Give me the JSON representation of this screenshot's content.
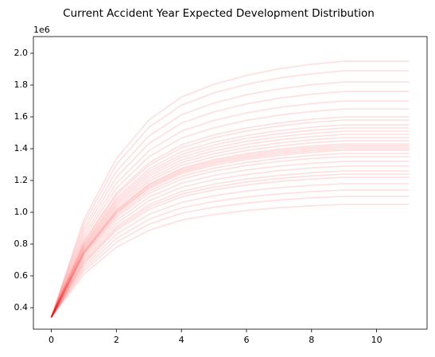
{
  "chart_data": {
    "type": "line",
    "title": "Current Accident Year Expected Development Distribution",
    "y_offset_label": "1e6",
    "color": "#ff0000",
    "line_opacity": 0.13,
    "x": [
      0,
      1,
      2,
      3,
      4,
      5,
      6,
      7,
      8,
      9,
      10,
      11
    ],
    "xlim": [
      -0.55,
      11.55
    ],
    "xticks": [
      0,
      2,
      4,
      6,
      8,
      10
    ],
    "ylim": [
      265000,
      2105000
    ],
    "yticks": [
      {
        "value": 400000,
        "label": "0.4"
      },
      {
        "value": 600000,
        "label": "0.6"
      },
      {
        "value": 800000,
        "label": "0.8"
      },
      {
        "value": 1000000,
        "label": "1.0"
      },
      {
        "value": 1200000,
        "label": "1.2"
      },
      {
        "value": 1400000,
        "label": "1.4"
      },
      {
        "value": 1600000,
        "label": "1.6"
      },
      {
        "value": 1800000,
        "label": "1.8"
      },
      {
        "value": 2000000,
        "label": "2.0"
      }
    ],
    "series": [
      {
        "values": [
          340000,
          610000,
          780000,
          887000,
          951000,
          986000,
          1011000,
          1029000,
          1041000,
          1050000,
          1050000,
          1050000
        ]
      },
      {
        "values": [
          340000,
          629000,
          811000,
          925000,
          994000,
          1032000,
          1058000,
          1077000,
          1091000,
          1100000,
          1100000,
          1100000
        ]
      },
      {
        "values": [
          340000,
          644000,
          836000,
          956000,
          1028000,
          1068000,
          1096000,
          1116000,
          1130000,
          1140000,
          1140000,
          1140000
        ]
      },
      {
        "values": [
          340000,
          659000,
          861000,
          987000,
          1062000,
          1104000,
          1134000,
          1155000,
          1170000,
          1180000,
          1180000,
          1180000
        ]
      },
      {
        "values": [
          340000,
          674000,
          886000,
          1018000,
          1097000,
          1141000,
          1172000,
          1194000,
          1209000,
          1220000,
          1220000,
          1220000
        ]
      },
      {
        "values": [
          340000,
          682000,
          898000,
          1033000,
          1114000,
          1159000,
          1191000,
          1213000,
          1229000,
          1240000,
          1240000,
          1240000
        ]
      },
      {
        "values": [
          340000,
          690000,
          910000,
          1048000,
          1131000,
          1177000,
          1209000,
          1232000,
          1249000,
          1260000,
          1260000,
          1260000
        ]
      },
      {
        "values": [
          340000,
          701000,
          929000,
          1072000,
          1157000,
          1205000,
          1238000,
          1262000,
          1279000,
          1290000,
          1290000,
          1290000
        ]
      },
      {
        "values": [
          340000,
          712000,
          948000,
          1095000,
          1183000,
          1232000,
          1266000,
          1291000,
          1308000,
          1320000,
          1320000,
          1320000
        ]
      },
      {
        "values": [
          340000,
          724000,
          966000,
          1118000,
          1209000,
          1259000,
          1294000,
          1320000,
          1338000,
          1350000,
          1350000,
          1350000
        ]
      },
      {
        "values": [
          340000,
          731000,
          979000,
          1133000,
          1226000,
          1277000,
          1313000,
          1339000,
          1358000,
          1370000,
          1370000,
          1370000
        ]
      },
      {
        "values": [
          340000,
          739000,
          991000,
          1148000,
          1243000,
          1295000,
          1332000,
          1358000,
          1377000,
          1390000,
          1390000,
          1390000
        ]
      },
      {
        "values": [
          340000,
          743000,
          997000,
          1156000,
          1252000,
          1305000,
          1342000,
          1368000,
          1387000,
          1400000,
          1400000,
          1400000
        ]
      },
      {
        "values": [
          340000,
          747000,
          1003000,
          1164000,
          1260000,
          1314000,
          1351000,
          1378000,
          1397000,
          1410000,
          1410000,
          1410000
        ]
      },
      {
        "values": [
          340000,
          750000,
          1010000,
          1172000,
          1269000,
          1323000,
          1361000,
          1388000,
          1407000,
          1420000,
          1420000,
          1420000
        ]
      },
      {
        "values": [
          340000,
          754000,
          1016000,
          1179000,
          1277000,
          1332000,
          1370000,
          1397000,
          1417000,
          1430000,
          1430000,
          1430000
        ]
      },
      {
        "values": [
          340000,
          762000,
          1028000,
          1195000,
          1295000,
          1350000,
          1389000,
          1417000,
          1437000,
          1450000,
          1450000,
          1450000
        ]
      },
      {
        "values": [
          340000,
          769000,
          1041000,
          1210000,
          1312000,
          1368000,
          1408000,
          1436000,
          1456000,
          1470000,
          1470000,
          1470000
        ]
      },
      {
        "values": [
          340000,
          777000,
          1053000,
          1226000,
          1329000,
          1387000,
          1427000,
          1456000,
          1476000,
          1490000,
          1490000,
          1490000
        ]
      },
      {
        "values": [
          340000,
          785000,
          1065000,
          1241000,
          1346000,
          1405000,
          1446000,
          1475000,
          1496000,
          1510000,
          1510000,
          1510000
        ]
      },
      {
        "values": [
          340000,
          792000,
          1078000,
          1256000,
          1363000,
          1423000,
          1465000,
          1494000,
          1516000,
          1530000,
          1530000,
          1530000
        ]
      },
      {
        "values": [
          340000,
          800000,
          1090000,
          1272000,
          1381000,
          1441000,
          1483000,
          1514000,
          1535000,
          1550000,
          1550000,
          1550000
        ]
      },
      {
        "values": [
          340000,
          811000,
          1109000,
          1295000,
          1406000,
          1468000,
          1512000,
          1543000,
          1565000,
          1580000,
          1580000,
          1580000
        ]
      },
      {
        "values": [
          340000,
          819000,
          1121000,
          1310000,
          1424000,
          1487000,
          1531000,
          1562000,
          1585000,
          1600000,
          1600000,
          1600000
        ]
      },
      {
        "values": [
          340000,
          838000,
          1152000,
          1349000,
          1467000,
          1532000,
          1578000,
          1611000,
          1634000,
          1650000,
          1650000,
          1650000
        ]
      },
      {
        "values": [
          340000,
          857000,
          1183000,
          1387000,
          1510000,
          1578000,
          1625000,
          1659000,
          1684000,
          1700000,
          1700000,
          1700000
        ]
      },
      {
        "values": [
          340000,
          880000,
          1220000,
          1433000,
          1561000,
          1632000,
          1682000,
          1717000,
          1743000,
          1760000,
          1760000,
          1760000
        ]
      },
      {
        "values": [
          340000,
          902000,
          1258000,
          1480000,
          1613000,
          1687000,
          1739000,
          1776000,
          1802000,
          1820000,
          1820000,
          1820000
        ]
      },
      {
        "values": [
          340000,
          929000,
          1301000,
          1534000,
          1673000,
          1751000,
          1805000,
          1844000,
          1871000,
          1890000,
          1890000,
          1890000
        ]
      },
      {
        "values": [
          340000,
          952000,
          1338000,
          1580000,
          1725000,
          1805000,
          1861000,
          1902000,
          1931000,
          1950000,
          1950000,
          1950000
        ]
      }
    ]
  }
}
